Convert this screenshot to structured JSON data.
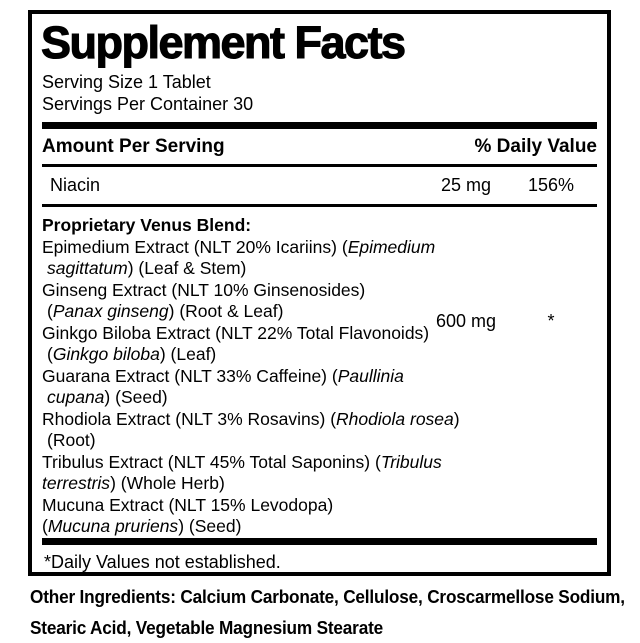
{
  "label": {
    "title": "Supplement Facts",
    "serving_size": "Serving Size 1 Tablet",
    "servings_per_container": "Servings Per Container 30",
    "header": {
      "amount_per_serving": "Amount Per Serving",
      "daily_value": "% Daily Value"
    },
    "nutrients": [
      {
        "name": "Niacin",
        "amount": "25 mg",
        "daily_value": "156%"
      }
    ],
    "blend": {
      "name": "Proprietary Venus Blend:",
      "amount": "600 mg",
      "daily_value": "*",
      "lines": [
        {
          "indent": false,
          "segments": [
            {
              "t": "Epimedium Extract (NLT 20% Icariins) ("
            },
            {
              "t": "Epimedium",
              "i": true
            }
          ]
        },
        {
          "indent": true,
          "segments": [
            {
              "t": "sagittatum",
              "i": true
            },
            {
              "t": ") (Leaf & Stem)"
            }
          ]
        },
        {
          "indent": false,
          "segments": [
            {
              "t": "Ginseng Extract (NLT 10% Ginsenosides)"
            }
          ]
        },
        {
          "indent": true,
          "segments": [
            {
              "t": "("
            },
            {
              "t": "Panax ginseng",
              "i": true
            },
            {
              "t": ") (Root & Leaf)"
            }
          ]
        },
        {
          "indent": false,
          "segments": [
            {
              "t": "Ginkgo Biloba Extract (NLT 22% Total Flavonoids)"
            }
          ]
        },
        {
          "indent": true,
          "segments": [
            {
              "t": "("
            },
            {
              "t": "Ginkgo biloba",
              "i": true
            },
            {
              "t": ") (Leaf)"
            }
          ]
        },
        {
          "indent": false,
          "segments": [
            {
              "t": "Guarana Extract (NLT 33% Caffeine) ("
            },
            {
              "t": "Paullinia",
              "i": true
            }
          ]
        },
        {
          "indent": true,
          "segments": [
            {
              "t": "cupana",
              "i": true
            },
            {
              "t": ") (Seed)"
            }
          ]
        },
        {
          "indent": false,
          "segments": [
            {
              "t": "Rhodiola Extract (NLT 3% Rosavins) ("
            },
            {
              "t": "Rhodiola rosea",
              "i": true
            },
            {
              "t": ")"
            }
          ]
        },
        {
          "indent": true,
          "segments": [
            {
              "t": "(Root)"
            }
          ]
        },
        {
          "indent": false,
          "segments": [
            {
              "t": "Tribulus Extract (NLT 45% Total Saponins) ("
            },
            {
              "t": "Tribulus",
              "i": true
            }
          ]
        },
        {
          "indent": false,
          "segments": [
            {
              "t": "terrestris",
              "i": true
            },
            {
              "t": ") (Whole Herb)"
            }
          ]
        },
        {
          "indent": false,
          "segments": [
            {
              "t": "Mucuna Extract (NLT 15% Levodopa)"
            }
          ]
        },
        {
          "indent": false,
          "segments": [
            {
              "t": "("
            },
            {
              "t": "Mucuna pruriens",
              "i": true
            },
            {
              "t": ") (Seed)"
            }
          ]
        }
      ]
    },
    "footnote": "*Daily Values not established.",
    "other_ingredients_lines": [
      "Other Ingredients: Calcium Carbonate, Cellulose, Croscarmellose Sodium,",
      "Stearic Acid, Vegetable Magnesium Stearate"
    ],
    "colors": {
      "text": "#000000",
      "background": "#ffffff",
      "rule": "#000000"
    }
  }
}
